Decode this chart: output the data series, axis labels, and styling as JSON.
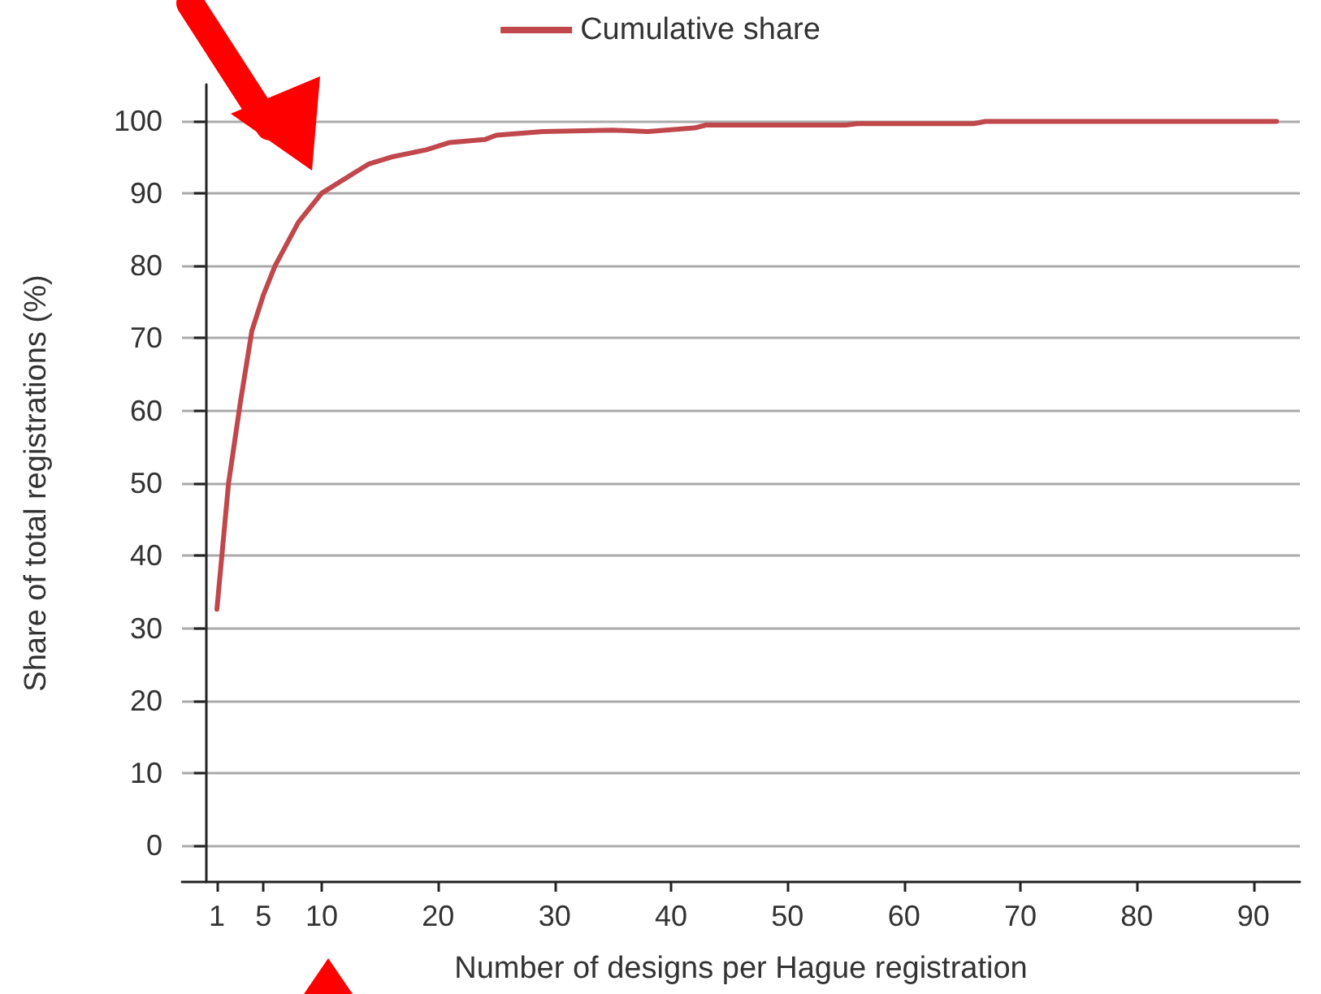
{
  "chart_data": {
    "type": "line",
    "xlabel": "Number of designs per Hague registration",
    "ylabel": "Share of total registrations (%)",
    "x": [
      1,
      2,
      3,
      4,
      5,
      6,
      8,
      10,
      12,
      14,
      16,
      19,
      21,
      24,
      25,
      29,
      35,
      38,
      42,
      43,
      55,
      56,
      66,
      67,
      92
    ],
    "series": [
      {
        "name": "Cumulative share",
        "color": "#c0474b",
        "values": [
          32.6,
          50,
          61,
          71,
          76,
          80,
          86,
          90,
          92,
          94,
          95,
          96,
          97,
          97.4,
          98,
          98.5,
          98.7,
          98.5,
          99,
          99.4,
          99.4,
          99.6,
          99.6,
          99.9,
          99.9
        ]
      }
    ],
    "xlim": [
      -2,
      94
    ],
    "xticks": [
      1,
      5,
      10,
      20,
      30,
      40,
      50,
      60,
      70,
      80,
      90
    ],
    "ylim": [
      -5,
      105
    ],
    "yticks": [
      0,
      10,
      20,
      30,
      40,
      50,
      60,
      70,
      80,
      90,
      100
    ],
    "grid": "y",
    "legend": "top",
    "marker": "none",
    "line_style": "solid"
  }
}
